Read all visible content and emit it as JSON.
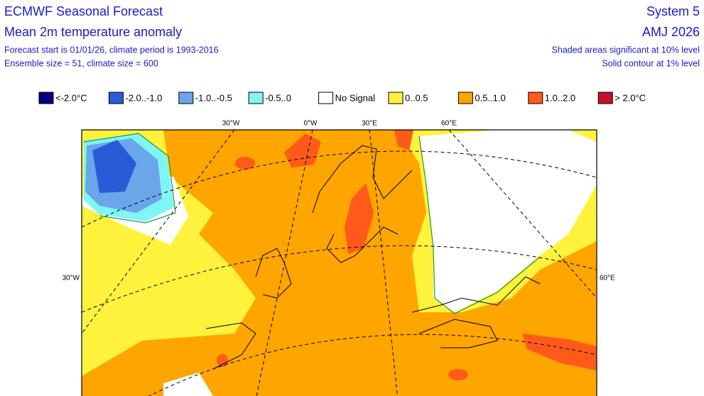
{
  "header": {
    "title": "ECMWF Seasonal Forecast",
    "subtitle": "Mean 2m temperature anomaly",
    "lines": [
      "Forecast start is 01/01/26, climate period is 1993-2016",
      "Ensemble size = 51, climate size = 600"
    ],
    "system": "System 5",
    "period": "AMJ 2026",
    "right_lines": [
      "Shaded areas significant at 10% level",
      "Solid contour at 1% level"
    ]
  },
  "legend": [
    {
      "label": "<-2.0°C",
      "color": "#000080"
    },
    {
      "label": "-2.0..-1.0",
      "color": "#2a5bd7"
    },
    {
      "label": "-1.0..-0.5",
      "color": "#6aa6ea"
    },
    {
      "label": "-0.5..0",
      "color": "#80f5f5"
    },
    {
      "label": "No Signal",
      "color": "#ffffff"
    },
    {
      "label": "0..0.5",
      "color": "#fff23c"
    },
    {
      "label": "0.5..1.0",
      "color": "#ffa500"
    },
    {
      "label": "1.0..2.0",
      "color": "#ff5a1a"
    },
    {
      "label": "> 2.0°C",
      "color": "#c8102e"
    }
  ],
  "map": {
    "top_labels": [
      "30°W",
      "0°W",
      "30°E",
      "60°E"
    ],
    "left_label": "30°W",
    "right_label": "60°E"
  }
}
